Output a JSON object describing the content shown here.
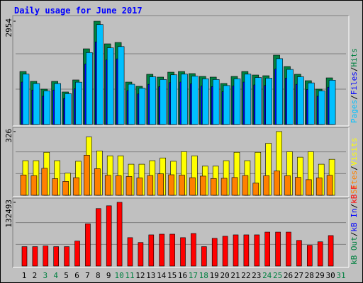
{
  "title": "Daily usage for June 2017",
  "separator": "/",
  "chart_data": [
    {
      "type": "bar",
      "ylim": [
        0,
        3035
      ],
      "yticks": [
        2954
      ],
      "grid": true,
      "series": [
        {
          "name": "Hits",
          "color": "#008040",
          "values": [
            1517,
            1234,
            1012,
            1234,
            931,
            1275,
            2165,
            2954,
            2307,
            2347,
            1214,
            1093,
            1437,
            1356,
            1497,
            1517,
            1457,
            1376,
            1356,
            1174,
            1376,
            1517,
            1416,
            1396,
            1983,
            1659,
            1437,
            1254,
            1012,
            1335,
            0
          ]
        },
        {
          "name": "Files",
          "color": "#0000ff",
          "values": [
            1214,
            987,
            810,
            987,
            745,
            1020,
            1732,
            2363,
            1846,
            1878,
            971,
            874,
            1150,
            1085,
            1198,
            1214,
            1166,
            1101,
            1085,
            939,
            1101,
            1214,
            1133,
            1117,
            1586,
            1327,
            1150,
            1003,
            810,
            1068,
            0
          ]
        },
        {
          "name": "Pages",
          "color": "#00c0ff",
          "values": [
            1441,
            1172,
            961,
            1172,
            884,
            1211,
            2057,
            2860,
            2192,
            2230,
            1153,
            1038,
            1365,
            1288,
            1422,
            1441,
            1384,
            1307,
            1288,
            1115,
            1307,
            1441,
            1345,
            1326,
            1884,
            1576,
            1365,
            1191,
            961,
            1268,
            0
          ]
        }
      ]
    },
    {
      "type": "bar",
      "ylim": [
        0,
        333
      ],
      "yticks": [
        326
      ],
      "grid": true,
      "series": [
        {
          "name": "Visits",
          "color": "#ffff00",
          "values": [
            177,
            177,
            220,
            177,
            113,
            174,
            298,
            227,
            202,
            202,
            159,
            159,
            177,
            191,
            174,
            223,
            202,
            149,
            149,
            177,
            220,
            177,
            220,
            266,
            326,
            223,
            195,
            223,
            159,
            184,
            0
          ]
        },
        {
          "name": "Sites",
          "color": "#ff8000",
          "values": [
            104,
            100,
            138,
            85,
            71,
            90,
            205,
            136,
            102,
            100,
            96,
            89,
            101,
            110,
            105,
            103,
            90,
            98,
            86,
            87,
            91,
            101,
            62,
            100,
            124,
            100,
            92,
            80,
            89,
            102,
            0
          ]
        }
      ]
    },
    {
      "type": "bar",
      "ylim": [
        0,
        135373
      ],
      "yticks": [
        132493
      ],
      "grid": true,
      "categories": [
        "1",
        "2",
        "3",
        "4",
        "5",
        "6",
        "7",
        "8",
        "9",
        "10",
        "11",
        "12",
        "13",
        "14",
        "15",
        "16",
        "17",
        "18",
        "19",
        "20",
        "21",
        "22",
        "23",
        "24",
        "25",
        "26",
        "27",
        "28",
        "29",
        "30",
        "31"
      ],
      "category_colors": [
        "#000000",
        "#000000",
        "#008040",
        "#008040",
        "#000000",
        "#000000",
        "#000000",
        "#000000",
        "#000000",
        "#008040",
        "#008040",
        "#000000",
        "#000000",
        "#000000",
        "#000000",
        "#000000",
        "#008040",
        "#008040",
        "#000000",
        "#000000",
        "#000000",
        "#000000",
        "#000000",
        "#008040",
        "#008040",
        "#000000",
        "#000000",
        "#000000",
        "#000000",
        "#000000",
        "#008040"
      ],
      "series": [
        {
          "name": "kB F",
          "color": "#ff0000",
          "values": [
            40324,
            40324,
            41764,
            40324,
            40324,
            51845,
            87849,
            119531,
            125292,
            132493,
            59046,
            48965,
            64807,
            66247,
            66247,
            59046,
            67687,
            40324,
            57605,
            61926,
            64807,
            64807,
            64807,
            70568,
            70568,
            70568,
            53285,
            43204,
            50405,
            63366,
            0
          ]
        },
        {
          "name": "kB In",
          "color": "#0000ff"
        },
        {
          "name": "kB Out",
          "color": "#008040"
        }
      ]
    }
  ]
}
